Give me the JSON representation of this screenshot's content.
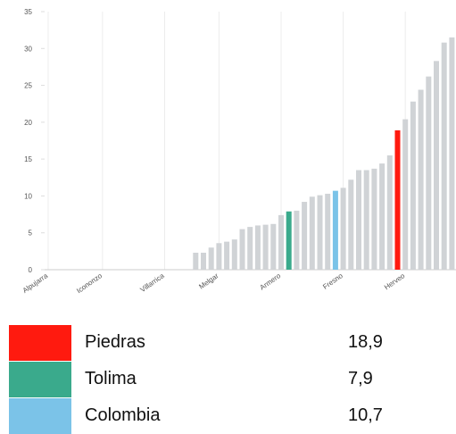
{
  "chart_data": {
    "type": "bar",
    "categories": [
      "Alpujarra",
      null,
      null,
      null,
      null,
      null,
      null,
      "Icononzo",
      null,
      null,
      null,
      null,
      null,
      null,
      null,
      "Villarrica",
      null,
      null,
      null,
      null,
      null,
      null,
      "Melgar",
      null,
      null,
      null,
      null,
      null,
      null,
      null,
      "Armero",
      null,
      null,
      null,
      null,
      null,
      null,
      null,
      "Fresno",
      null,
      null,
      null,
      null,
      null,
      null,
      null,
      "Herveo",
      null,
      null,
      null,
      null,
      null,
      null
    ],
    "values": [
      0,
      0,
      0,
      0,
      0,
      0,
      0,
      0,
      0,
      0,
      0,
      0,
      0,
      0,
      0,
      0,
      0,
      0,
      0,
      2.3,
      2.3,
      3.0,
      3.6,
      3.8,
      4.1,
      5.5,
      5.8,
      6.0,
      6.1,
      6.2,
      7.4,
      7.9,
      8.0,
      9.2,
      9.9,
      10.1,
      10.3,
      10.7,
      11.1,
      12.2,
      13.5,
      13.5,
      13.7,
      14.4,
      15.5,
      18.9,
      20.4,
      22.8,
      24.4,
      26.2,
      28.3,
      30.8,
      31.5
    ],
    "colors": [
      "#d0d3d6",
      "#d0d3d6",
      "#d0d3d6",
      "#d0d3d6",
      "#d0d3d6",
      "#d0d3d6",
      "#d0d3d6",
      "#d0d3d6",
      "#d0d3d6",
      "#d0d3d6",
      "#d0d3d6",
      "#d0d3d6",
      "#d0d3d6",
      "#d0d3d6",
      "#d0d3d6",
      "#d0d3d6",
      "#d0d3d6",
      "#d0d3d6",
      "#d0d3d6",
      "#d0d3d6",
      "#d0d3d6",
      "#d0d3d6",
      "#d0d3d6",
      "#d0d3d6",
      "#d0d3d6",
      "#d0d3d6",
      "#d0d3d6",
      "#d0d3d6",
      "#d0d3d6",
      "#d0d3d6",
      "#d0d3d6",
      "#3aaa8c",
      "#d0d3d6",
      "#d0d3d6",
      "#d0d3d6",
      "#d0d3d6",
      "#d0d3d6",
      "#7bc3e8",
      "#d0d3d6",
      "#d0d3d6",
      "#d0d3d6",
      "#d0d3d6",
      "#d0d3d6",
      "#d0d3d6",
      "#d0d3d6",
      "#ff1a0f",
      "#d0d3d6",
      "#d0d3d6",
      "#d0d3d6",
      "#d0d3d6",
      "#d0d3d6",
      "#d0d3d6",
      "#d0d3d6"
    ],
    "ylim": [
      0,
      35
    ],
    "yticks": [
      0,
      5,
      10,
      15,
      20,
      25,
      30,
      35
    ],
    "legend": [
      {
        "name": "Piedras",
        "color": "#ff1a0f",
        "value": 18.9,
        "value_label": "18,9"
      },
      {
        "name": "Tolima",
        "color": "#3aaa8c",
        "value": 7.9,
        "value_label": "7,9"
      },
      {
        "name": "Colombia",
        "color": "#7bc3e8",
        "value": 10.7,
        "value_label": "10,7"
      }
    ]
  }
}
